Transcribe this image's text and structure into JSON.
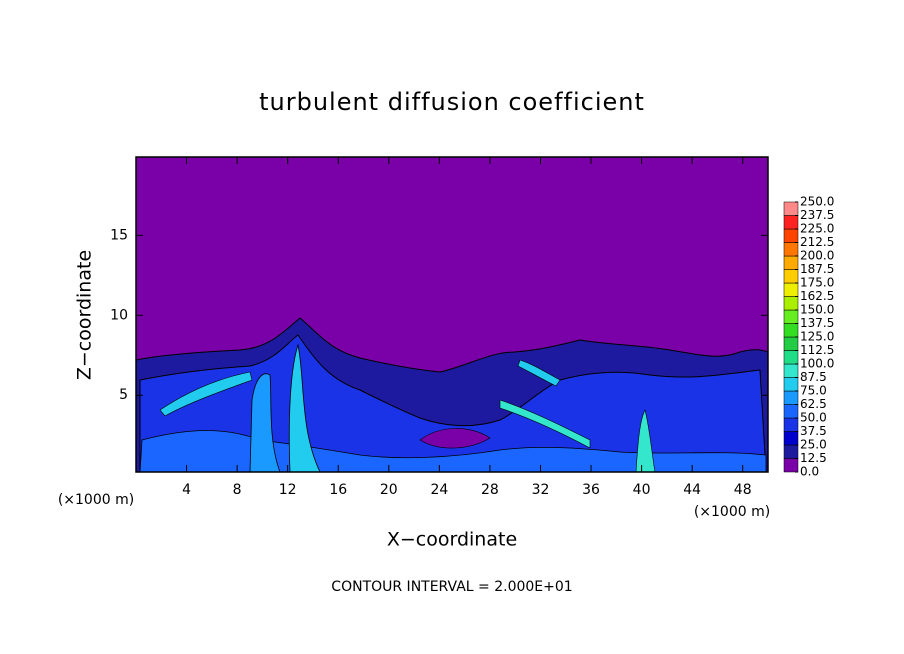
{
  "chart_data": {
    "type": "contour",
    "title": "turbulent diffusion coefficient",
    "x_label": "X−coordinate",
    "y_label": "Z−coordinate",
    "unit_label": "(×1000 m)",
    "note": "CONTOUR INTERVAL = 2.000E+01",
    "xlim": [
      0,
      50
    ],
    "xticks": [
      4,
      8,
      12,
      16,
      20,
      24,
      28,
      32,
      36,
      40,
      44,
      48
    ],
    "ylim": [
      0.2,
      19.9
    ],
    "yticks": [
      5,
      10,
      15
    ],
    "colorbar": {
      "lim": [
        0,
        250
      ],
      "ticks": [
        {
          "value": 0,
          "label": "0.0"
        },
        {
          "value": 12.5,
          "label": "12.5"
        },
        {
          "value": 25,
          "label": "25.0"
        },
        {
          "value": 37.5,
          "label": "37.5"
        },
        {
          "value": 50,
          "label": "50.0"
        },
        {
          "value": 62.5,
          "label": "62.5"
        },
        {
          "value": 75,
          "label": "75.0"
        },
        {
          "value": 87.5,
          "label": "87.5"
        },
        {
          "value": 100,
          "label": "100.0"
        },
        {
          "value": 112.5,
          "label": "112.5"
        },
        {
          "value": 125,
          "label": "125.0"
        },
        {
          "value": 137.5,
          "label": "137.5"
        },
        {
          "value": 150,
          "label": "150.0"
        },
        {
          "value": 162.5,
          "label": "162.5"
        },
        {
          "value": 175,
          "label": "175.0"
        },
        {
          "value": 187.5,
          "label": "187.5"
        },
        {
          "value": 200,
          "label": "200.0"
        },
        {
          "value": 212.5,
          "label": "212.5"
        },
        {
          "value": 225,
          "label": "225.0"
        },
        {
          "value": 237.5,
          "label": "237.5"
        },
        {
          "value": 250,
          "label": "250.0"
        }
      ],
      "colors": [
        "#7a00a8",
        "#1e1aa0",
        "#0000cc",
        "#1a33e6",
        "#1a66ff",
        "#1a99ff",
        "#22ccee",
        "#33e6cc",
        "#22dd88",
        "#22cc44",
        "#33dd22",
        "#66ee22",
        "#aaee00",
        "#eeee00",
        "#ffcc00",
        "#ffaa00",
        "#ff7700",
        "#ff4400",
        "#ff2222",
        "#ff8888"
      ]
    }
  }
}
